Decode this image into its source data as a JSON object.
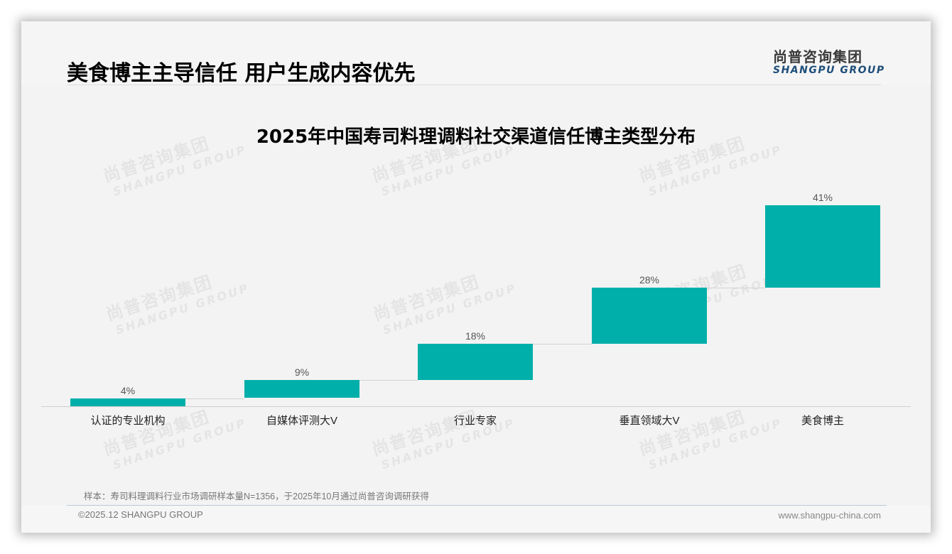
{
  "header": {
    "title": "美食博主主导信任 用户生成内容优先",
    "logo_cn": "尚普咨询集团",
    "logo_en": "SHANGPU GROUP"
  },
  "watermark": {
    "cn": "尚普咨询集团",
    "en": "SHANGPU GROUP"
  },
  "chart_data": {
    "type": "bar",
    "subtype": "waterfall",
    "title": "2025年中国寿司料理调料社交渠道信任博主类型分布",
    "categories": [
      "认证的专业机构",
      "自媒体评测大V",
      "行业专家",
      "垂直领域大V",
      "美食博主"
    ],
    "values": [
      4,
      9,
      18,
      28,
      41
    ],
    "value_labels": [
      "4%",
      "9%",
      "18%",
      "28%",
      "41%"
    ],
    "unit": "%",
    "cumulative_bases": [
      0,
      4,
      13,
      31,
      59
    ],
    "cumulative_tops": [
      4,
      13,
      31,
      59,
      100
    ],
    "xlabel": "",
    "ylabel": "",
    "ylim": [
      0,
      100
    ],
    "grid": false,
    "legend": "none",
    "bar_color": "#00afa9"
  },
  "footer": {
    "footnote": "样本：寿司料理调料行业市场调研样本量N=1356，于2025年10月通过尚普咨询调研获得",
    "copyright": "©2025.12 SHANGPU GROUP",
    "website": "www.shangpu-china.com"
  }
}
